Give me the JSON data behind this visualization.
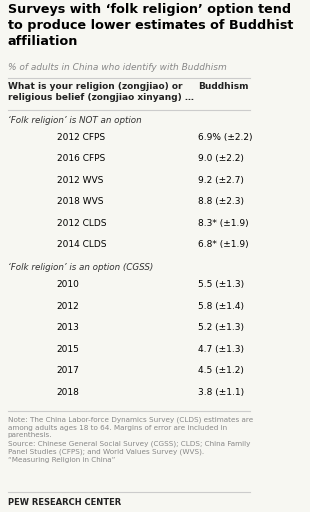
{
  "title": "Surveys with ‘folk religion’ option tend\nto produce lower estimates of Buddhist\naffiliation",
  "subtitle": "% of adults in China who identify with Buddhism",
  "col_header_left": "What is your religion (zongjiao) or\nreligious belief (zongjiao xinyang) …",
  "col_header_right": "Buddhism",
  "section1_label": "‘Folk religion’ is NOT an option",
  "section1_rows": [
    [
      "2012 CFPS",
      "6.9% (±2.2)"
    ],
    [
      "2016 CFPS",
      "9.0 (±2.2)"
    ],
    [
      "2012 WVS",
      "9.2 (±2.7)"
    ],
    [
      "2018 WVS",
      "8.8 (±2.3)"
    ],
    [
      "2012 CLDS",
      "8.3* (±1.9)"
    ],
    [
      "2014 CLDS",
      "6.8* (±1.9)"
    ]
  ],
  "section2_label": "‘Folk religion’ is an option (CGSS)",
  "section2_rows": [
    [
      "2010",
      "5.5 (±1.3)"
    ],
    [
      "2012",
      "5.8 (±1.4)"
    ],
    [
      "2013",
      "5.2 (±1.3)"
    ],
    [
      "2015",
      "4.7 (±1.3)"
    ],
    [
      "2017",
      "4.5 (±1.2)"
    ],
    [
      "2018",
      "3.8 (±1.1)"
    ]
  ],
  "note": "Note: The China Labor-force Dynamics Survey (CLDS) estimates are\namong adults ages 18 to 64. Margins of error are included in\nparenthesis.\nSource: Chinese General Social Survey (CGSS); CLDS; China Family\nPanel Studies (CFPS); and World Values Survey (WVS).\n“Measuring Religion in China”",
  "footer": "PEW RESEARCH CENTER",
  "bg_color": "#f7f7f2",
  "title_color": "#000000",
  "subtitle_color": "#888888",
  "section_label_color": "#333333",
  "row_color": "#000000",
  "note_color": "#888888",
  "header_color": "#222222",
  "divider_color": "#cccccc"
}
